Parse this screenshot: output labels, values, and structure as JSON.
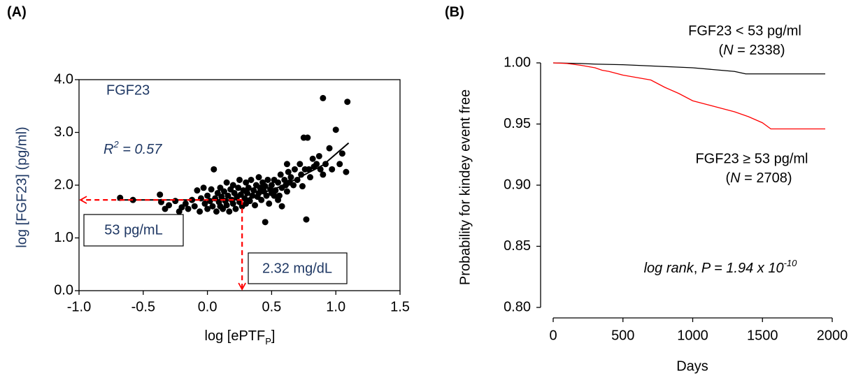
{
  "chart_data": [
    {
      "type": "scatter",
      "panel_label": "(A)",
      "title": "FGF23",
      "r2": [
        {
          "text": "R",
          "style": "italic"
        },
        {
          "text": "2",
          "style": "sup"
        },
        {
          "text": " = 0.57",
          "style": "italic"
        }
      ],
      "ylabel": "log [FGF23] (pg/ml)",
      "xlabel": [
        {
          "text": "log [ePTF",
          "style": "normal"
        },
        {
          "text": "P",
          "style": "sub"
        },
        {
          "text": "]",
          "style": "normal"
        }
      ],
      "xlim": [
        -1.0,
        1.5
      ],
      "ylim": [
        0,
        4
      ],
      "xticks": [
        {
          "value": -1,
          "label": "-1.0"
        },
        -0.5,
        {
          "value": 0,
          "label": "0.0"
        },
        0.5,
        {
          "value": 1,
          "label": "1.0"
        },
        1.5
      ],
      "yticks": [
        {
          "value": 0,
          "label": "0.0"
        },
        {
          "value": 1,
          "label": "1.0"
        },
        {
          "value": 2,
          "label": "2.0"
        },
        {
          "value": 3,
          "label": "3.0"
        },
        {
          "value": 4,
          "label": "4.0"
        }
      ],
      "color": "#000000",
      "x": [
        -0.68,
        -0.58,
        -0.37,
        -0.36,
        -0.33,
        -0.3,
        -0.25,
        -0.22,
        -0.2,
        -0.17,
        -0.15,
        -0.12,
        -0.1,
        -0.08,
        -0.06,
        -0.05,
        -0.03,
        -0.02,
        0.0,
        0.0,
        0.02,
        0.03,
        0.04,
        0.05,
        0.06,
        0.07,
        0.08,
        0.09,
        0.1,
        0.1,
        0.11,
        0.12,
        0.13,
        0.14,
        0.15,
        0.15,
        0.16,
        0.17,
        0.18,
        0.19,
        0.2,
        0.2,
        0.21,
        0.22,
        0.23,
        0.24,
        0.25,
        0.25,
        0.26,
        0.27,
        0.28,
        0.29,
        0.3,
        0.3,
        0.31,
        0.32,
        0.33,
        0.34,
        0.35,
        0.36,
        0.37,
        0.38,
        0.39,
        0.4,
        0.4,
        0.41,
        0.42,
        0.43,
        0.44,
        0.45,
        0.46,
        0.47,
        0.48,
        0.49,
        0.5,
        0.5,
        0.52,
        0.53,
        0.55,
        0.56,
        0.57,
        0.58,
        0.6,
        0.61,
        0.62,
        0.63,
        0.64,
        0.65,
        0.67,
        0.68,
        0.7,
        0.72,
        0.73,
        0.74,
        0.75,
        0.76,
        0.77,
        0.78,
        0.79,
        0.8,
        0.82,
        0.83,
        0.85,
        0.87,
        0.88,
        0.9,
        0.9,
        0.92,
        0.95,
        0.97,
        1.0,
        1.03,
        1.05,
        1.08,
        1.09,
        0.55,
        0.58,
        0.62,
        0.45,
        0.52
      ],
      "values": [
        1.76,
        1.72,
        1.82,
        1.68,
        1.55,
        1.62,
        1.7,
        1.5,
        1.58,
        1.65,
        1.55,
        1.72,
        1.6,
        1.9,
        1.5,
        1.75,
        1.95,
        1.65,
        1.8,
        1.55,
        1.7,
        1.92,
        1.6,
        2.3,
        1.75,
        1.5,
        1.85,
        1.68,
        1.95,
        1.6,
        1.78,
        1.55,
        1.88,
        1.7,
        2.05,
        1.62,
        1.8,
        1.5,
        1.92,
        1.72,
        1.65,
        2.0,
        1.85,
        1.55,
        1.78,
        1.95,
        1.68,
        2.1,
        1.82,
        1.6,
        1.9,
        1.75,
        2.05,
        1.65,
        1.85,
        1.95,
        1.7,
        2.1,
        1.8,
        1.9,
        1.62,
        2.0,
        1.78,
        2.15,
        1.85,
        1.95,
        1.72,
        2.05,
        1.88,
        1.98,
        1.8,
        2.1,
        1.65,
        1.92,
        2.0,
        1.85,
        2.1,
        1.9,
        2.05,
        1.8,
        2.2,
        1.95,
        2.1,
        2.0,
        1.88,
        2.25,
        2.05,
        2.15,
        2.0,
        2.3,
        2.1,
        2.4,
        2.2,
        1.98,
        2.9,
        2.3,
        1.35,
        2.9,
        2.3,
        2.15,
        2.5,
        2.35,
        2.4,
        2.55,
        2.3,
        3.65,
        2.2,
        2.4,
        2.7,
        2.3,
        3.05,
        2.4,
        2.6,
        2.25,
        3.58,
        1.72,
        1.6,
        2.4,
        1.3,
        1.8
      ],
      "fit": {
        "x": [
          -0.7,
          0.28,
          0.6,
          0.9,
          1.1
        ],
        "values": [
          1.72,
          1.72,
          2.0,
          2.38,
          2.8
        ],
        "color": "#000000"
      },
      "cutoff": {
        "x": 0.27,
        "y": 1.72,
        "color": "#ff0000"
      },
      "annotations": [
        "53 pg/mL",
        "2.32 mg/dL"
      ]
    },
    {
      "type": "line",
      "panel_label": "(B)",
      "ylabel": "Probability for kindey event free",
      "xlabel": "Days",
      "xlim": [
        0,
        2000
      ],
      "ylim": [
        0.8,
        1.0
      ],
      "xticks": [
        0,
        500,
        1000,
        1500,
        2000
      ],
      "yticks": [
        {
          "value": 0.8,
          "label": "0.80"
        },
        {
          "value": 0.85,
          "label": "0.85"
        },
        {
          "value": 0.9,
          "label": "0.90"
        },
        {
          "value": 0.95,
          "label": "0.95"
        },
        {
          "value": 1.0,
          "label": "1.00"
        }
      ],
      "series": [
        {
          "name": "FGF23 < 53 pg/ml",
          "color": "#000000",
          "n_label": [
            {
              "text": "(",
              "style": "normal"
            },
            {
              "text": "N",
              "style": "italic"
            },
            {
              "text": " = 2338)",
              "style": "normal"
            }
          ],
          "x": [
            0,
            200,
            300,
            500,
            600,
            800,
            1000,
            1100,
            1200,
            1300,
            1380,
            1500,
            1950
          ],
          "values": [
            1.0,
            0.9995,
            0.999,
            0.9985,
            0.998,
            0.997,
            0.996,
            0.995,
            0.994,
            0.993,
            0.991,
            0.991,
            0.991
          ]
        },
        {
          "name": "FGF23 ≥ 53 pg/ml",
          "color": "#ff0000",
          "n_label": [
            {
              "text": "(",
              "style": "normal"
            },
            {
              "text": "N",
              "style": "italic"
            },
            {
              "text": " = 2708)",
              "style": "normal"
            }
          ],
          "x": [
            0,
            100,
            200,
            300,
            350,
            400,
            500,
            600,
            700,
            750,
            800,
            900,
            1000,
            1100,
            1200,
            1300,
            1400,
            1500,
            1560,
            1700,
            1950
          ],
          "values": [
            1.0,
            0.9995,
            0.998,
            0.996,
            0.994,
            0.993,
            0.99,
            0.988,
            0.986,
            0.983,
            0.98,
            0.975,
            0.969,
            0.966,
            0.963,
            0.96,
            0.956,
            0.951,
            0.946,
            0.946,
            0.946
          ]
        }
      ],
      "annotation": [
        {
          "text": "log rank",
          "style": "italic"
        },
        {
          "text": ", ",
          "style": "normal"
        },
        {
          "text": "P = 1.94 x 10",
          "style": "italic"
        },
        {
          "text": "-10",
          "style": "sup"
        }
      ]
    }
  ]
}
